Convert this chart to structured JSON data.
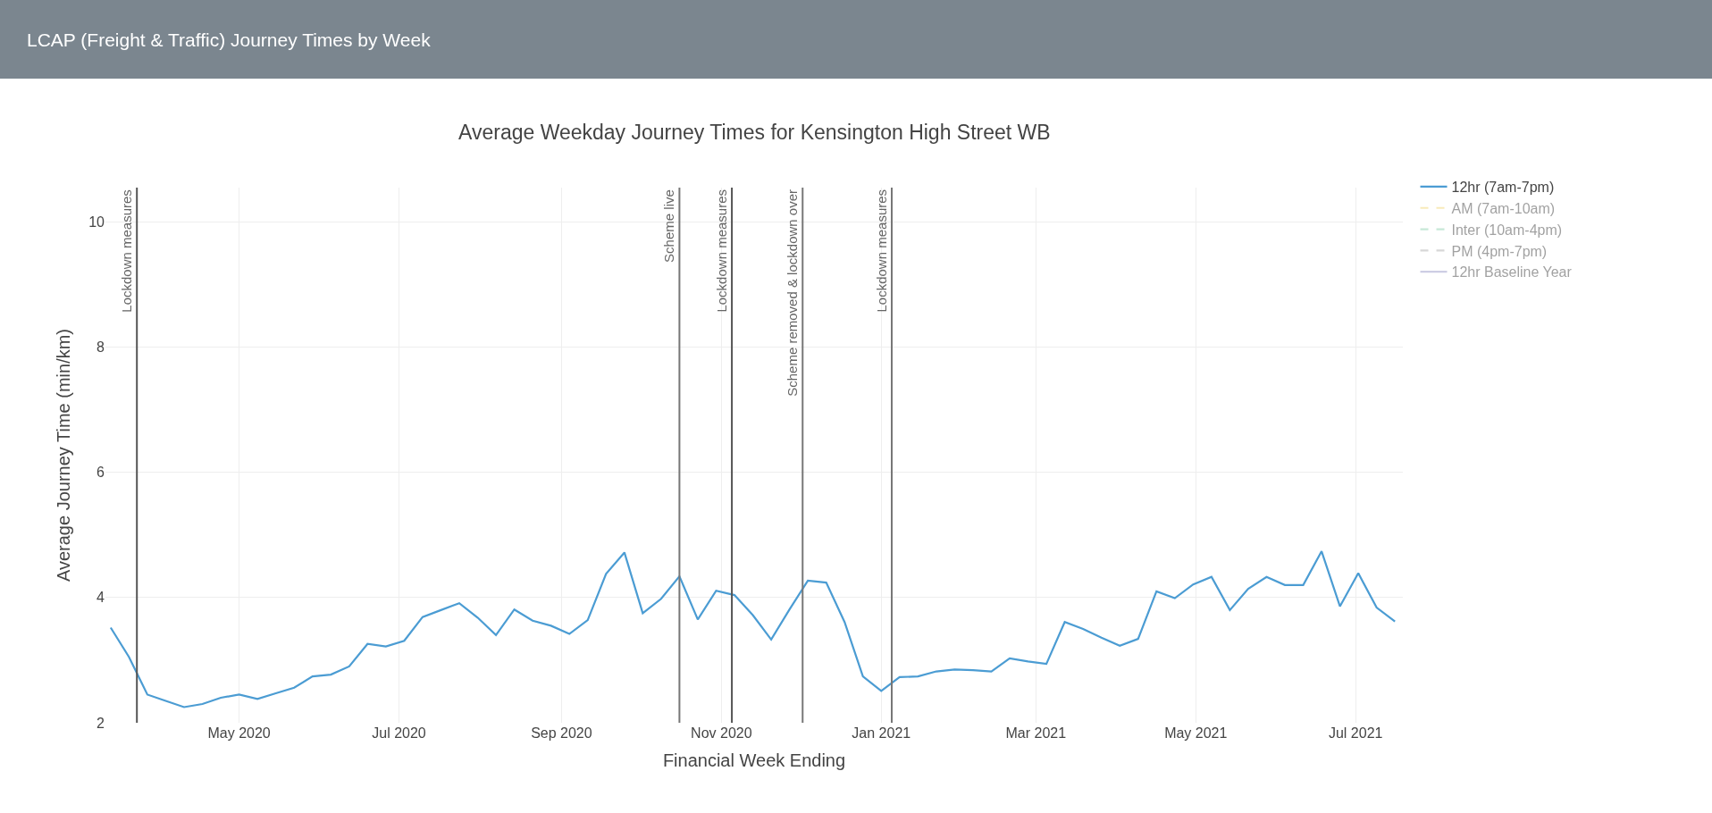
{
  "chart_data": {
    "type": "line",
    "title": "LCAP (Freight & Traffic) Journey Times by Week",
    "subtitle": "Average Weekday Journey Times for Kensington High Street WB",
    "xlabel": "Financial Week Ending",
    "ylabel": "Average Journey Time (min/km)",
    "x": [
      "2020-03-13",
      "2020-03-20",
      "2020-03-27",
      "2020-04-03",
      "2020-04-10",
      "2020-04-17",
      "2020-04-24",
      "2020-05-01",
      "2020-05-08",
      "2020-05-15",
      "2020-05-22",
      "2020-05-29",
      "2020-06-05",
      "2020-06-12",
      "2020-06-19",
      "2020-06-26",
      "2020-07-03",
      "2020-07-10",
      "2020-07-17",
      "2020-07-24",
      "2020-07-31",
      "2020-08-07",
      "2020-08-14",
      "2020-08-21",
      "2020-08-28",
      "2020-09-04",
      "2020-09-11",
      "2020-09-18",
      "2020-09-25",
      "2020-10-02",
      "2020-10-09",
      "2020-10-16",
      "2020-10-23",
      "2020-10-30",
      "2020-11-06",
      "2020-11-13",
      "2020-11-20",
      "2020-11-27",
      "2020-12-04",
      "2020-12-11",
      "2020-12-18",
      "2020-12-25",
      "2021-01-01",
      "2021-01-08",
      "2021-01-15",
      "2021-01-22",
      "2021-01-29",
      "2021-02-05",
      "2021-02-12",
      "2021-02-19",
      "2021-02-26",
      "2021-03-05",
      "2021-03-12",
      "2021-03-19",
      "2021-03-26",
      "2021-04-02",
      "2021-04-09",
      "2021-04-16",
      "2021-04-23",
      "2021-04-30",
      "2021-05-07",
      "2021-05-14",
      "2021-05-21",
      "2021-05-28",
      "2021-06-04",
      "2021-06-11",
      "2021-06-18",
      "2021-06-25",
      "2021-07-02",
      "2021-07-09",
      "2021-07-16"
    ],
    "series": [
      {
        "name": "12hr (7am-7pm)",
        "color": "#4b9cd3",
        "values": [
          3.52,
          3.05,
          2.45,
          2.35,
          2.25,
          2.3,
          2.4,
          2.45,
          2.38,
          2.47,
          2.56,
          2.74,
          2.77,
          2.9,
          3.26,
          3.22,
          3.31,
          3.69,
          3.8,
          3.91,
          3.68,
          3.4,
          3.81,
          3.63,
          3.55,
          3.42,
          3.64,
          4.38,
          4.72,
          3.75,
          3.98,
          4.34,
          3.65,
          4.11,
          4.04,
          3.72,
          3.33,
          3.81,
          4.27,
          4.24,
          3.61,
          2.74,
          2.51,
          2.73,
          2.74,
          2.82,
          2.85,
          2.84,
          2.82,
          3.03,
          2.98,
          2.94,
          3.61,
          3.5,
          3.36,
          3.23,
          3.34,
          4.1,
          3.99,
          4.21,
          4.33,
          3.8,
          4.14,
          4.33,
          4.2,
          4.2,
          4.74,
          3.86,
          4.39,
          3.84,
          3.62
        ]
      },
      {
        "name": "AM (7am-10am)",
        "color": "#f2d675",
        "line_style": "dashed",
        "values": [
          null,
          null,
          null,
          null,
          null,
          null,
          null,
          null,
          null,
          null,
          null,
          null,
          null,
          null,
          null,
          null,
          null,
          null,
          null,
          null,
          null,
          null,
          null,
          null,
          null,
          null,
          null,
          null,
          null,
          null,
          null,
          null,
          null,
          null,
          null,
          null,
          null,
          null,
          null,
          null,
          null,
          null,
          null,
          null,
          null,
          null,
          null,
          null,
          null,
          null,
          null,
          null,
          null,
          null,
          null,
          null,
          null,
          null,
          null,
          null,
          null,
          null,
          null,
          null,
          null,
          null,
          null,
          null,
          null,
          null,
          null
        ]
      },
      {
        "name": "Inter (10am-4pm)",
        "color": "#8fd1b0",
        "line_style": "dashed",
        "values": [
          null,
          null,
          null,
          null,
          null,
          null,
          null,
          null,
          null,
          null,
          null,
          null,
          null,
          null,
          null,
          null,
          null,
          null,
          null,
          null,
          null,
          null,
          null,
          null,
          null,
          null,
          null,
          null,
          null,
          null,
          null,
          null,
          null,
          null,
          null,
          null,
          null,
          null,
          null,
          null,
          null,
          null,
          null,
          null,
          null,
          null,
          null,
          null,
          null,
          null,
          null,
          null,
          null,
          null,
          null,
          null,
          null,
          null,
          null,
          null,
          null,
          null,
          null,
          null,
          null,
          null,
          null,
          null,
          null,
          null,
          null
        ]
      },
      {
        "name": "PM (4pm-7pm)",
        "color": "#b0b0b0",
        "line_style": "dashed",
        "values": [
          null,
          null,
          null,
          null,
          null,
          null,
          null,
          null,
          null,
          null,
          null,
          null,
          null,
          null,
          null,
          null,
          null,
          null,
          null,
          null,
          null,
          null,
          null,
          null,
          null,
          null,
          null,
          null,
          null,
          null,
          null,
          null,
          null,
          null,
          null,
          null,
          null,
          null,
          null,
          null,
          null,
          null,
          null,
          null,
          null,
          null,
          null,
          null,
          null,
          null,
          null,
          null,
          null,
          null,
          null,
          null,
          null,
          null,
          null,
          null,
          null,
          null,
          null,
          null,
          null,
          null,
          null,
          null,
          null,
          null,
          null
        ]
      },
      {
        "name": "12hr Baseline Year",
        "color": "#9a9ac8",
        "line_style": "solid",
        "values": [
          null,
          null,
          null,
          null,
          null,
          null,
          null,
          null,
          null,
          null,
          null,
          null,
          null,
          null,
          null,
          null,
          null,
          null,
          null,
          null,
          null,
          null,
          null,
          null,
          null,
          null,
          null,
          null,
          null,
          null,
          null,
          null,
          null,
          null,
          null,
          null,
          null,
          null,
          null,
          null,
          null,
          null,
          null,
          null,
          null,
          null,
          null,
          null,
          null,
          null,
          null,
          null,
          null,
          null,
          null,
          null,
          null,
          null,
          null,
          null,
          null,
          null,
          null,
          null,
          null,
          null,
          null,
          null,
          null,
          null,
          null
        ]
      }
    ],
    "xlim": [
      "2020-03-11",
      "2021-07-19"
    ],
    "xticks": [
      {
        "value": "2020-05-01",
        "label": "May 2020"
      },
      {
        "value": "2020-07-01",
        "label": "Jul 2020"
      },
      {
        "value": "2020-09-01",
        "label": "Sep 2020"
      },
      {
        "value": "2020-11-01",
        "label": "Nov 2020"
      },
      {
        "value": "2021-01-01",
        "label": "Jan 2021"
      },
      {
        "value": "2021-03-01",
        "label": "Mar 2021"
      },
      {
        "value": "2021-05-01",
        "label": "May 2021"
      },
      {
        "value": "2021-07-01",
        "label": "Jul 2021"
      }
    ],
    "ylim": [
      2,
      10.55
    ],
    "yticks": [
      2,
      4,
      6,
      8,
      10
    ],
    "ref_lines": [
      {
        "axis": "x",
        "value": "2020-03-23",
        "label": "Lockdown measures",
        "color": "#555555"
      },
      {
        "axis": "x",
        "value": "2020-10-16",
        "label": "Scheme live",
        "color": "#777777"
      },
      {
        "axis": "x",
        "value": "2020-11-05",
        "label": "Lockdown measures",
        "color": "#555555"
      },
      {
        "axis": "x",
        "value": "2020-12-02",
        "label": "Scheme removed & lockdown over",
        "color": "#777777"
      },
      {
        "axis": "x",
        "value": "2021-01-05",
        "label": "Lockdown measures",
        "color": "#777777"
      }
    ],
    "grid": true,
    "legend": "top right",
    "marker": "none",
    "line_style": "solid"
  }
}
